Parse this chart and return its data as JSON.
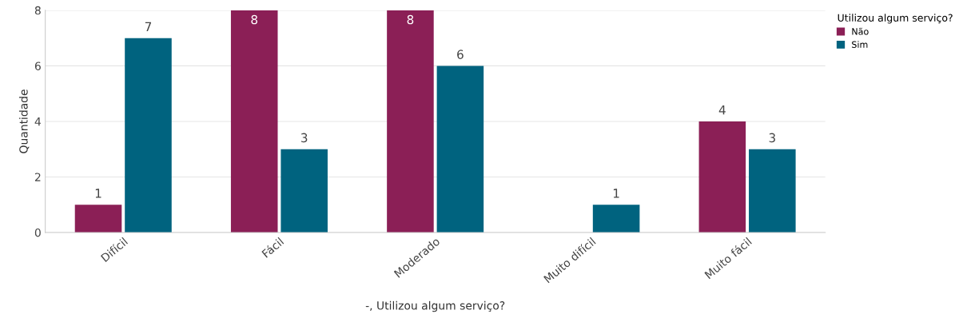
{
  "chart_data": {
    "type": "bar",
    "xlabel": "-, Utilizou algum serviço?",
    "ylabel": "Quantidade",
    "legend_title": "Utilizou algum serviço?",
    "categories": [
      "Difícil",
      "Fácil",
      "Moderado",
      "Muito difícil",
      "Muito fácil"
    ],
    "series": [
      {
        "name": "Não",
        "color": "#8b1f56",
        "values": [
          1,
          8,
          8,
          0,
          4
        ],
        "value_labels": [
          "1",
          "8",
          "8",
          null,
          "4"
        ]
      },
      {
        "name": "Sim",
        "color": "#00637f",
        "values": [
          7,
          3,
          6,
          1,
          3
        ],
        "value_labels": [
          "7",
          "3",
          "6",
          "1",
          "3"
        ]
      }
    ],
    "ylim": [
      0,
      8
    ],
    "yticks": [
      0,
      2,
      4,
      6,
      8
    ],
    "grid": "y",
    "legend": "top right"
  }
}
